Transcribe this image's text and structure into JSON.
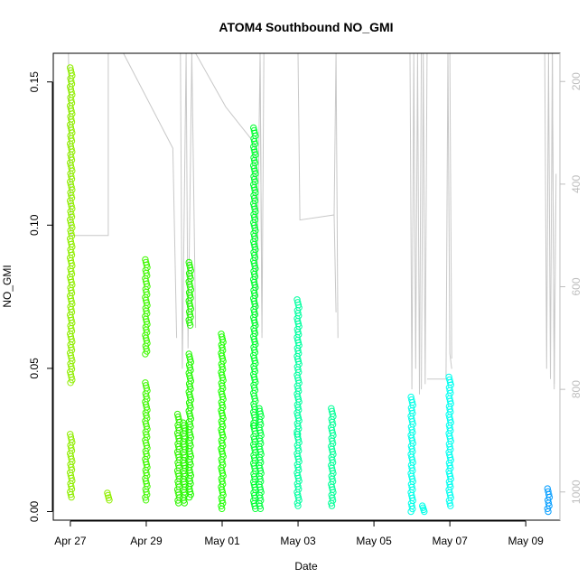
{
  "chart_data": {
    "type": "scatter",
    "title": "ATOM4 Southbound NO_GMI",
    "xlabel": "Date",
    "ylabel": "NO_GMI",
    "x_ticks": [
      "Apr 27",
      "Apr 29",
      "May 01",
      "May 03",
      "May 05",
      "May 07",
      "May 09"
    ],
    "x_tick_days": [
      0,
      2,
      4,
      6,
      8,
      10,
      12
    ],
    "y_ticks": [
      "0.00",
      "0.05",
      "0.10",
      "0.15"
    ],
    "y_tick_values": [
      0,
      0.05,
      0.1,
      0.15
    ],
    "right_ticks": [
      "200",
      "400",
      "600",
      "800",
      "1000"
    ],
    "right_tick_values": [
      200,
      400,
      600,
      800,
      1000
    ],
    "xlim": [
      -0.45,
      12.9
    ],
    "ylim": [
      -0.003,
      0.16
    ],
    "right_lim": [
      1055,
      145
    ],
    "grid": false,
    "marker": "open circle",
    "series_colors": [
      "#90ee00",
      "#40f800",
      "#1cff00",
      "#00ff40",
      "#00ffa0",
      "#00fff0",
      "#009cff"
    ],
    "series": [
      {
        "x": 0.02,
        "ymin": 0.005,
        "ymax": 0.155,
        "color": "#90ee00",
        "bands": [
          [
            0.005,
            0.027
          ],
          [
            0.045,
            0.155
          ]
        ]
      },
      {
        "x": 1.0,
        "ymin": 0.004,
        "ymax": 0.0065,
        "color": "#90ee00",
        "bands": [
          [
            0.004,
            0.0065
          ]
        ]
      },
      {
        "x": 2.0,
        "ymin": 0.004,
        "ymax": 0.088,
        "color": "#40f800",
        "bands": [
          [
            0.004,
            0.045
          ],
          [
            0.055,
            0.088
          ]
        ]
      },
      {
        "x": 2.85,
        "ymin": 0.003,
        "ymax": 0.034,
        "color": "#30f400",
        "bands": [
          [
            0.003,
            0.034
          ]
        ]
      },
      {
        "x": 3.0,
        "ymin": 0.003,
        "ymax": 0.031,
        "color": "#28f800",
        "bands": [
          [
            0.003,
            0.031
          ]
        ]
      },
      {
        "x": 3.15,
        "ymin": 0.005,
        "ymax": 0.087,
        "color": "#20f800",
        "bands": [
          [
            0.005,
            0.055
          ],
          [
            0.065,
            0.087
          ]
        ]
      },
      {
        "x": 4.0,
        "ymin": 0.001,
        "ymax": 0.062,
        "color": "#1cff00",
        "bands": [
          [
            0.001,
            0.022
          ],
          [
            0.022,
            0.062
          ]
        ]
      },
      {
        "x": 4.85,
        "ymin": 0.001,
        "ymax": 0.134,
        "color": "#00ff30",
        "bands": [
          [
            0.001,
            0.03
          ],
          [
            0.03,
            0.134
          ]
        ]
      },
      {
        "x": 5.0,
        "ymin": 0.001,
        "ymax": 0.036,
        "color": "#00ff40",
        "bands": [
          [
            0.001,
            0.036
          ]
        ]
      },
      {
        "x": 6.0,
        "ymin": 0.002,
        "ymax": 0.074,
        "color": "#00ffa0",
        "bands": [
          [
            0.002,
            0.027
          ],
          [
            0.027,
            0.074
          ]
        ]
      },
      {
        "x": 6.9,
        "ymin": 0.002,
        "ymax": 0.036,
        "color": "#00ff98",
        "bands": [
          [
            0.002,
            0.036
          ]
        ]
      },
      {
        "x": 9.0,
        "ymin": 0.0,
        "ymax": 0.04,
        "color": "#00ffe8",
        "bands": [
          [
            0.0,
            0.04
          ]
        ]
      },
      {
        "x": 9.3,
        "ymin": 0.0,
        "ymax": 0.002,
        "color": "#00ffe8",
        "bands": [
          [
            0.0,
            0.002
          ]
        ]
      },
      {
        "x": 10.0,
        "ymin": 0.002,
        "ymax": 0.047,
        "color": "#00fff0",
        "bands": [
          [
            0.002,
            0.047
          ]
        ]
      },
      {
        "x": 12.6,
        "ymin": 0.0,
        "ymax": 0.008,
        "color": "#009cff",
        "bands": [
          [
            0.0,
            0.008
          ]
        ]
      }
    ],
    "altitude_traces": [
      {
        "x": [
          -0.05,
          0.02,
          1.0,
          1.0
        ],
        "y": [
          145,
          500,
          500,
          145
        ]
      },
      {
        "x": [
          1.4,
          2.7,
          2.8
        ],
        "y": [
          145,
          330,
          700
        ]
      },
      {
        "x": [
          2.9,
          2.95,
          3.05,
          3.1,
          3.2,
          3.3
        ],
        "y": [
          145,
          760,
          145,
          720,
          145,
          680
        ]
      },
      {
        "x": [
          3.3,
          4.1
        ],
        "y": [
          145,
          250
        ]
      },
      {
        "x": [
          4.1,
          4.85,
          4.9,
          5.0,
          5.05
        ],
        "y": [
          250,
          320,
          720,
          145,
          700
        ]
      },
      {
        "x": [
          5.0,
          5.05,
          5.1
        ],
        "y": [
          145,
          690,
          145
        ]
      },
      {
        "x": [
          6.0,
          6.05,
          6.95,
          7.0
        ],
        "y": [
          145,
          470,
          460,
          650
        ]
      },
      {
        "x": [
          6.95,
          7.0,
          7.05
        ],
        "y": [
          460,
          145,
          700
        ]
      },
      {
        "x": [
          8.95,
          9.0,
          9.05,
          9.1,
          9.15,
          9.2,
          9.25
        ],
        "y": [
          145,
          800,
          145,
          760,
          145,
          810,
          145
        ]
      },
      {
        "x": [
          9.25,
          9.3,
          9.35,
          9.4
        ],
        "y": [
          800,
          145,
          790,
          145
        ]
      },
      {
        "x": [
          9.4,
          9.9,
          9.95,
          10.0,
          10.05
        ],
        "y": [
          780,
          780,
          145,
          730,
          760
        ]
      },
      {
        "x": [
          10.0,
          10.05
        ],
        "y": [
          145,
          740
        ]
      },
      {
        "x": [
          12.5,
          12.55,
          12.6,
          12.65,
          12.7,
          12.75
        ],
        "y": [
          145,
          760,
          145,
          780,
          145,
          790
        ]
      },
      {
        "x": [
          12.7,
          12.75,
          12.8
        ],
        "y": [
          145,
          800,
          380
        ]
      }
    ]
  }
}
